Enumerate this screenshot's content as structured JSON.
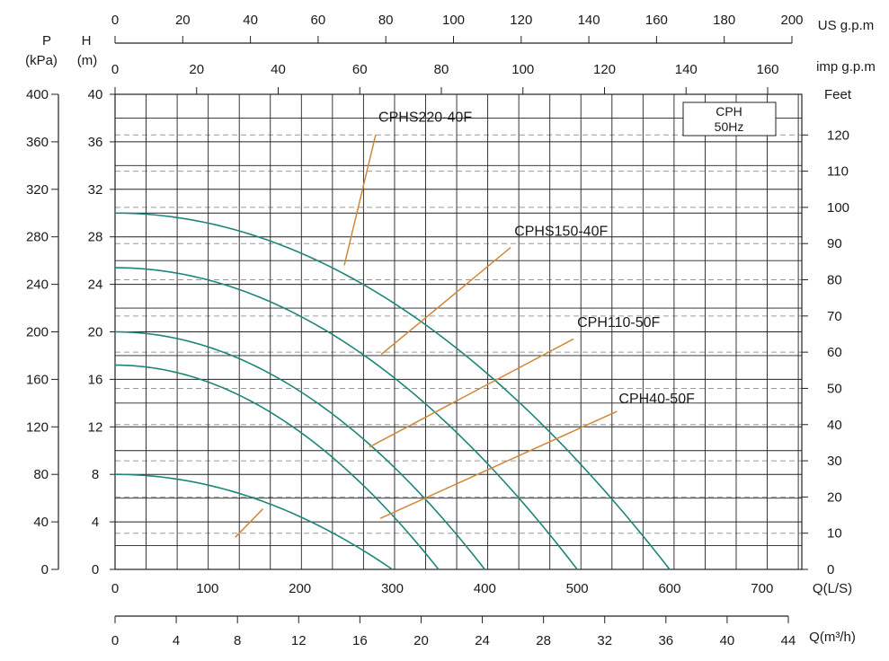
{
  "chart_data": {
    "type": "line",
    "legend_box": {
      "line1": "CPH",
      "line2": "50Hz"
    },
    "axes": {
      "y_left_kpa": {
        "label_top": "P",
        "label_bottom": "(kPa)",
        "ticks": [
          0,
          40,
          80,
          120,
          160,
          200,
          240,
          280,
          320,
          360,
          400
        ],
        "range": [
          0,
          400
        ]
      },
      "y_left_m": {
        "label_top": "H",
        "label_bottom": "(m)",
        "ticks": [
          0,
          4,
          8,
          12,
          16,
          20,
          24,
          28,
          32,
          36,
          40
        ],
        "range": [
          0,
          40
        ]
      },
      "y_right_feet": {
        "label": "Feet",
        "ticks": [
          0,
          10,
          20,
          30,
          40,
          50,
          60,
          70,
          80,
          90,
          100,
          110,
          120
        ]
      },
      "x_bottom_ls": {
        "label": "Q(L/S)",
        "ticks": [
          0,
          100,
          200,
          300,
          400,
          500,
          600,
          700
        ],
        "range": [
          0,
          740
        ]
      },
      "x_bottom_m3h": {
        "label": "Q(m³/h)",
        "ticks": [
          0,
          4,
          8,
          12,
          16,
          20,
          24,
          28,
          32,
          36,
          40,
          44
        ]
      },
      "x_top_us": {
        "label": "US g.p.m",
        "ticks": [
          0,
          20,
          40,
          60,
          80,
          100,
          120,
          140,
          160,
          180,
          200
        ]
      },
      "x_top_imp": {
        "label": "imp g.p.m",
        "ticks": [
          0,
          20,
          40,
          60,
          80,
          100,
          120,
          140,
          160
        ]
      }
    },
    "grid": true,
    "series": [
      {
        "name": "CPHS220-40F",
        "color": "#1e8579",
        "shutoff_head": 30,
        "max_flow": 600,
        "label_pos": [
          285,
          37.7
        ],
        "leader_from": [
          248,
          25.6
        ],
        "leader_to": [
          282,
          36.6
        ]
      },
      {
        "name": "CPHS150-40F",
        "color": "#1e8579",
        "shutoff_head": 25.4,
        "max_flow": 500,
        "label_pos": [
          432,
          28.1
        ],
        "leader_from": [
          288,
          18.1
        ],
        "leader_to": [
          428,
          27.1
        ]
      },
      {
        "name": "CPH110-50F",
        "color": "#1e8579",
        "shutoff_head": 20,
        "max_flow": 400,
        "label_pos": [
          500,
          20.4
        ],
        "leader_from": [
          275,
          10.3
        ],
        "leader_to": [
          496,
          19.4
        ]
      },
      {
        "name": "CPH40-50F",
        "color": "#1e8579",
        "shutoff_head": 17.2,
        "max_flow": 350,
        "label_pos": [
          545,
          14.0
        ],
        "leader_from": [
          287,
          4.3
        ],
        "leader_to": [
          543,
          13.3
        ]
      },
      {
        "name": "",
        "color": "#1e8579",
        "shutoff_head": 8,
        "max_flow": 300,
        "leader_from": [
          130,
          2.7
        ],
        "leader_to": [
          160,
          5.1
        ]
      }
    ],
    "leader_color": "#d0883a",
    "dashed_feet_lines": [
      10,
      20,
      30,
      40,
      50,
      60,
      70,
      80,
      90,
      100,
      110,
      120
    ],
    "vertical_grid_ls_step": 33.6
  }
}
